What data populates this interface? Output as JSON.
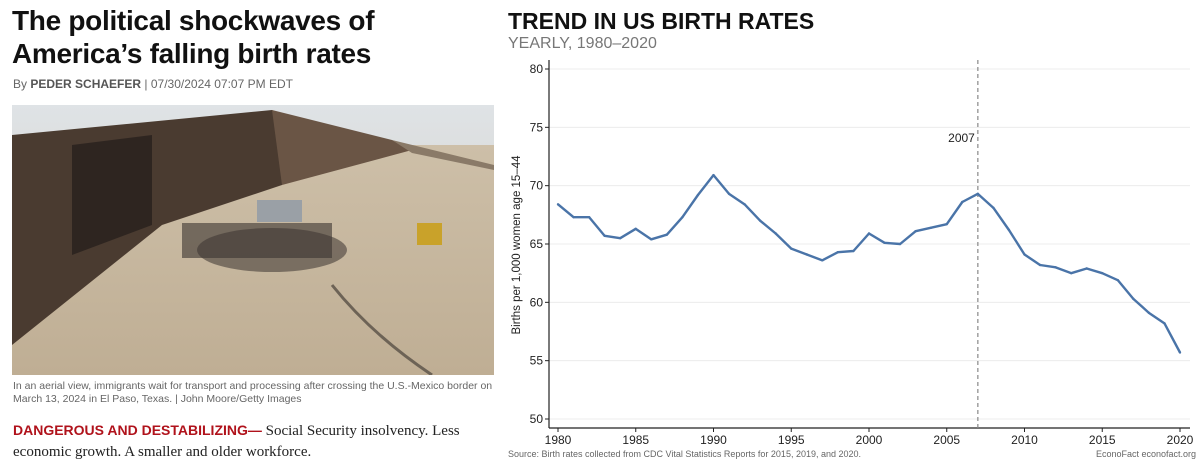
{
  "article": {
    "headline": "The political shockwaves of America’s falling birth rates",
    "by": "By",
    "author": "PEDER SCHAEFER",
    "separator": "|",
    "timestamp": "07/30/2024 07:07 PM EDT",
    "caption": "In an aerial view, immigrants wait for transport and processing after crossing the U.S.-Mexico border on March 13, 2024 in El Paso, Texas. | John Moore/Getty Images",
    "kicker": "DANGEROUS AND DESTABILIZING—",
    "lede": " Social Security insolvency. Less economic growth. A smaller and older workforce."
  },
  "chart_data": {
    "type": "line",
    "title": "TREND IN US BIRTH RATES",
    "subtitle": "YEARLY, 1980–2020",
    "xlabel": "",
    "ylabel": "Births per 1,000 women age 15–44",
    "ylim": [
      50,
      80
    ],
    "xlim": [
      1980,
      2020
    ],
    "yticks": [
      "50",
      "55",
      "60",
      "65",
      "70",
      "75",
      "80"
    ],
    "xticks": [
      "1980",
      "1985",
      "1990",
      "1995",
      "2000",
      "2005",
      "2010",
      "2015",
      "2020"
    ],
    "grid": true,
    "annotation": {
      "x": 2007,
      "label": "2007"
    },
    "source": "Source: Birth rates collected from CDC Vital Statistics Reports for 2015, 2019, and 2020.",
    "credit": "EconoFact  econofact.org",
    "line_color": "#4a74a8",
    "series": [
      {
        "name": "Birth rate",
        "x": [
          1980,
          1981,
          1982,
          1983,
          1984,
          1985,
          1986,
          1987,
          1988,
          1989,
          1990,
          1991,
          1992,
          1993,
          1994,
          1995,
          1996,
          1997,
          1998,
          1999,
          2000,
          2001,
          2002,
          2003,
          2004,
          2005,
          2006,
          2007,
          2008,
          2009,
          2010,
          2011,
          2012,
          2013,
          2014,
          2015,
          2016,
          2017,
          2018,
          2019,
          2020
        ],
        "values": [
          68.4,
          67.3,
          67.3,
          65.7,
          65.5,
          66.3,
          65.4,
          65.8,
          67.3,
          69.2,
          70.9,
          69.3,
          68.4,
          67.0,
          65.9,
          64.6,
          64.1,
          63.6,
          64.3,
          64.4,
          65.9,
          65.1,
          65.0,
          66.1,
          66.4,
          66.7,
          68.6,
          69.3,
          68.1,
          66.2,
          64.1,
          63.2,
          63.0,
          62.5,
          62.9,
          62.5,
          61.9,
          60.3,
          59.1,
          58.2,
          55.7
        ]
      }
    ]
  }
}
